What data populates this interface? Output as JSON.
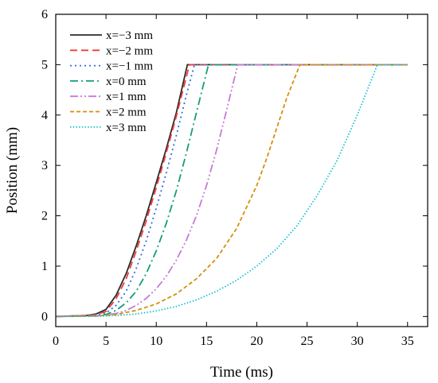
{
  "chart_data": {
    "type": "line",
    "xlabel": "Time (ms)",
    "ylabel": "Position (mm)",
    "xlim": [
      0,
      37
    ],
    "ylim": [
      -0.2,
      6
    ],
    "xticks": [
      0,
      5,
      10,
      15,
      20,
      25,
      30,
      35
    ],
    "yticks": [
      0,
      1,
      2,
      3,
      4,
      5,
      6
    ],
    "grid": false,
    "legend_position": "top-left",
    "series": [
      {
        "name": "x=−3 mm",
        "color": "#2b2b2b",
        "dash": "solid",
        "x": [
          0,
          3,
          4,
          5,
          6,
          7,
          8,
          9,
          10,
          11,
          12,
          13.1,
          14,
          20,
          25,
          30,
          35
        ],
        "y": [
          0,
          0.02,
          0.05,
          0.14,
          0.42,
          0.85,
          1.4,
          2.0,
          2.66,
          3.33,
          4.05,
          5.0,
          5.0,
          5.0,
          5.0,
          5.0,
          5.0
        ]
      },
      {
        "name": "x=−2 mm",
        "color": "#f03c3c",
        "dash": "dashed",
        "x": [
          0,
          3,
          4,
          5,
          6,
          7,
          8,
          9,
          10,
          11,
          12,
          13.3,
          14,
          20,
          25,
          30,
          35
        ],
        "y": [
          0,
          0.02,
          0.04,
          0.1,
          0.35,
          0.75,
          1.3,
          1.9,
          2.56,
          3.25,
          3.98,
          5.0,
          5.0,
          5.0,
          5.0,
          5.0,
          5.0
        ]
      },
      {
        "name": "x=−1 mm",
        "color": "#2b6fe0",
        "dash": "dotted",
        "x": [
          0,
          3,
          4,
          5,
          6,
          7,
          8,
          9,
          10,
          11,
          12,
          13,
          13.8,
          14,
          20,
          25,
          30,
          35
        ],
        "y": [
          0,
          0.01,
          0.03,
          0.07,
          0.22,
          0.5,
          0.95,
          1.5,
          2.15,
          2.85,
          3.6,
          4.4,
          5.0,
          5.0,
          5.0,
          5.0,
          5.0,
          5.0
        ]
      },
      {
        "name": "x=0 mm",
        "color": "#139e77",
        "dash": "dashdot",
        "x": [
          0,
          3,
          4,
          5,
          6,
          7,
          8,
          9,
          10,
          11,
          12,
          13,
          14,
          15.2,
          16,
          20,
          25,
          30,
          35
        ],
        "y": [
          0,
          0.01,
          0.02,
          0.04,
          0.12,
          0.27,
          0.5,
          0.85,
          1.3,
          1.85,
          2.5,
          3.25,
          4.05,
          5.0,
          5.0,
          5.0,
          5.0,
          5.0,
          5.0
        ]
      },
      {
        "name": "x=1 mm",
        "color": "#c77ad6",
        "dash": "dashdotdot",
        "x": [
          0,
          4,
          5,
          6,
          7,
          8,
          9,
          10,
          11,
          12,
          13,
          14,
          15,
          16,
          17,
          18.1,
          19,
          25,
          30,
          35
        ],
        "y": [
          0,
          0.01,
          0.03,
          0.06,
          0.12,
          0.22,
          0.36,
          0.55,
          0.8,
          1.12,
          1.52,
          2.0,
          2.6,
          3.3,
          4.1,
          5.0,
          5.0,
          5.0,
          5.0,
          5.0
        ]
      },
      {
        "name": "x=2 mm",
        "color": "#d4900f",
        "dash": "shortdash",
        "x": [
          0,
          4,
          6,
          8,
          10,
          12,
          14,
          16,
          18,
          20,
          21,
          22,
          23,
          24.3,
          25,
          30,
          35
        ],
        "y": [
          0,
          0.01,
          0.04,
          0.12,
          0.25,
          0.45,
          0.75,
          1.15,
          1.75,
          2.6,
          3.15,
          3.75,
          4.35,
          5.0,
          5.0,
          5.0,
          5.0
        ]
      },
      {
        "name": "x=3 mm",
        "color": "#17c3cf",
        "dash": "densedot",
        "x": [
          0,
          4,
          6,
          8,
          10,
          12,
          14,
          16,
          18,
          20,
          22,
          24,
          26,
          28,
          30,
          31,
          32,
          33,
          35
        ],
        "y": [
          0,
          0.005,
          0.02,
          0.05,
          0.11,
          0.2,
          0.33,
          0.5,
          0.72,
          1.0,
          1.35,
          1.8,
          2.4,
          3.1,
          4.0,
          4.5,
          5.0,
          5.0,
          5.0
        ]
      }
    ]
  }
}
